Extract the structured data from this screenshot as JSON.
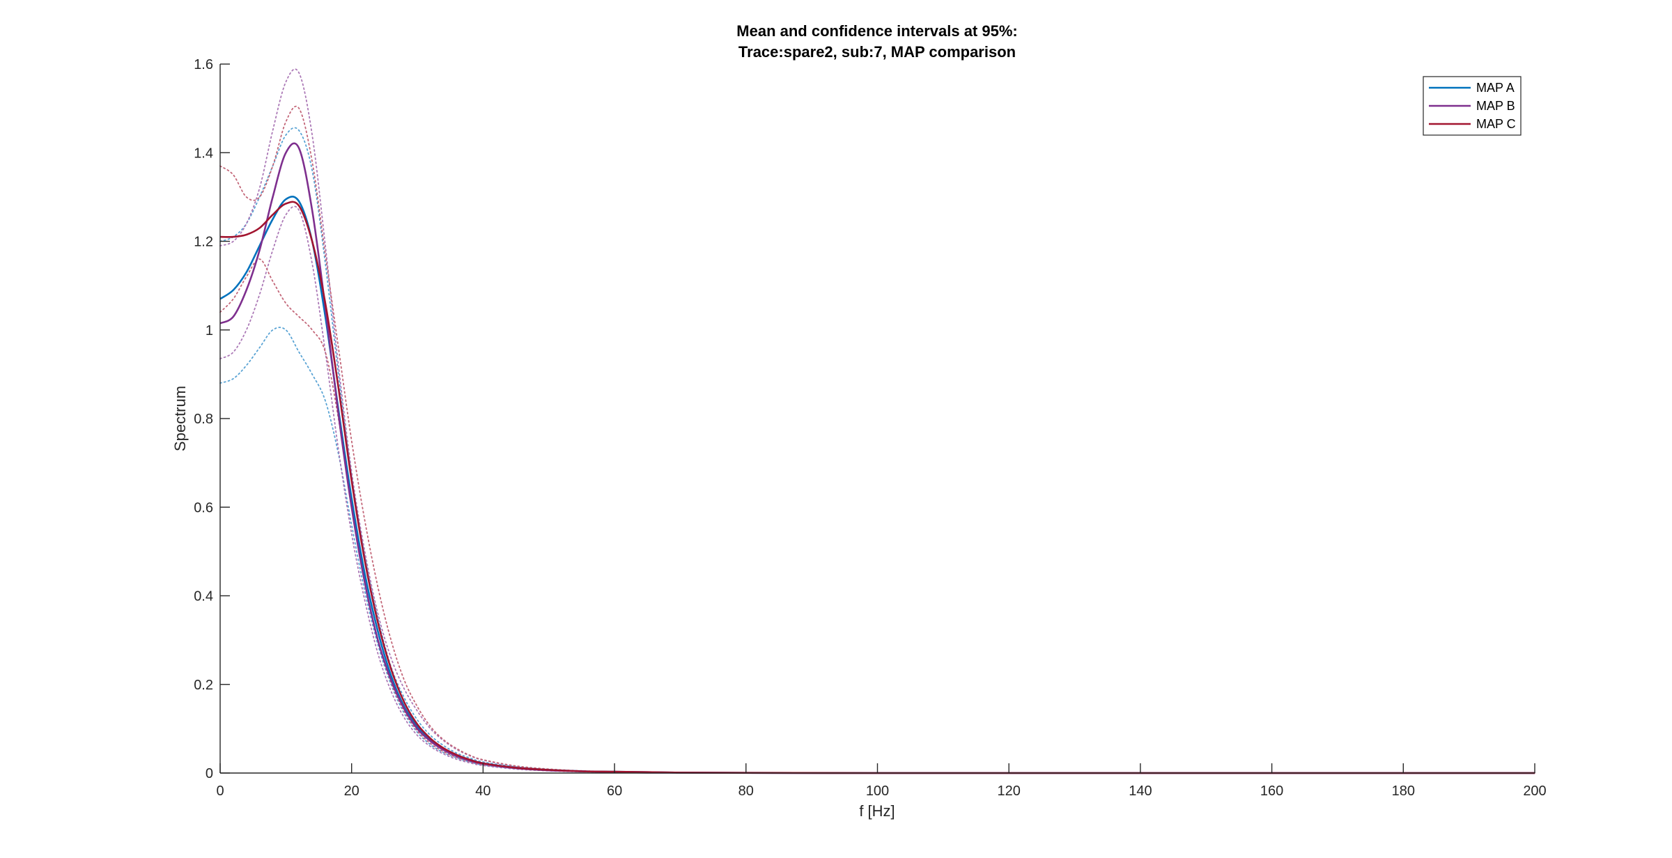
{
  "chart_data": {
    "type": "line",
    "title_line1": "Mean and confidence intervals at 95%:",
    "title_line2": "Trace:spare2, sub:7, MAP comparison",
    "xlabel": "f [Hz]",
    "ylabel": "Spectrum",
    "xlim": [
      0,
      200
    ],
    "ylim": [
      0,
      1.6
    ],
    "xticks": [
      "0",
      "20",
      "40",
      "60",
      "80",
      "100",
      "120",
      "140",
      "160",
      "180",
      "200"
    ],
    "yticks": [
      "0",
      "0.2",
      "0.4",
      "0.6",
      "0.8",
      "1",
      "1.2",
      "1.4",
      "1.6"
    ],
    "grid": false,
    "legend_position": "top-right",
    "x": [
      0,
      2,
      4,
      6,
      8,
      10,
      12,
      14,
      16,
      18,
      20,
      22,
      24,
      26,
      28,
      30,
      32,
      34,
      36,
      38,
      40,
      45,
      50,
      55,
      60,
      65,
      70,
      80,
      100,
      120,
      140,
      160,
      180,
      200
    ],
    "series": [
      {
        "name": "MAP A",
        "color": "#0072BD",
        "mean": [
          1.07,
          1.09,
          1.13,
          1.19,
          1.25,
          1.295,
          1.29,
          1.2,
          1.03,
          0.82,
          0.62,
          0.45,
          0.32,
          0.22,
          0.15,
          0.105,
          0.075,
          0.055,
          0.04,
          0.03,
          0.022,
          0.012,
          0.007,
          0.004,
          0.003,
          0.002,
          0.001,
          0.0005,
          0,
          0,
          0,
          0,
          0,
          0
        ],
        "upper": [
          1.2,
          1.21,
          1.24,
          1.3,
          1.37,
          1.44,
          1.45,
          1.36,
          1.15,
          0.9,
          0.67,
          0.49,
          0.35,
          0.24,
          0.17,
          0.12,
          0.085,
          0.062,
          0.045,
          0.034,
          0.025,
          0.014,
          0.008,
          0.005,
          0.003,
          0.002,
          0.001,
          0.0005,
          0,
          0,
          0,
          0,
          0,
          0
        ],
        "lower": [
          0.88,
          0.89,
          0.92,
          0.96,
          1.0,
          1.0,
          0.95,
          0.9,
          0.84,
          0.72,
          0.56,
          0.41,
          0.29,
          0.2,
          0.135,
          0.092,
          0.064,
          0.046,
          0.034,
          0.025,
          0.018,
          0.01,
          0.006,
          0.003,
          0.002,
          0.001,
          0.001,
          0.0003,
          0,
          0,
          0,
          0,
          0,
          0
        ]
      },
      {
        "name": "MAP B",
        "color": "#7E2F8E",
        "mean": [
          1.015,
          1.03,
          1.09,
          1.18,
          1.3,
          1.4,
          1.41,
          1.27,
          1.05,
          0.81,
          0.6,
          0.43,
          0.3,
          0.21,
          0.145,
          0.1,
          0.072,
          0.052,
          0.038,
          0.028,
          0.021,
          0.011,
          0.006,
          0.004,
          0.002,
          0.001,
          0.001,
          0.0003,
          0,
          0,
          0,
          0,
          0,
          0
        ],
        "upper": [
          1.19,
          1.2,
          1.24,
          1.32,
          1.45,
          1.56,
          1.58,
          1.44,
          1.19,
          0.92,
          0.68,
          0.5,
          0.36,
          0.26,
          0.19,
          0.14,
          0.1,
          0.073,
          0.053,
          0.039,
          0.029,
          0.015,
          0.008,
          0.005,
          0.003,
          0.002,
          0.001,
          0.0005,
          0,
          0,
          0,
          0,
          0,
          0
        ],
        "lower": [
          0.935,
          0.95,
          1.0,
          1.08,
          1.18,
          1.26,
          1.27,
          1.15,
          0.95,
          0.73,
          0.54,
          0.39,
          0.27,
          0.185,
          0.125,
          0.085,
          0.06,
          0.043,
          0.031,
          0.023,
          0.017,
          0.009,
          0.005,
          0.003,
          0.002,
          0.001,
          0.0005,
          0.0002,
          0,
          0,
          0,
          0,
          0,
          0
        ]
      },
      {
        "name": "MAP C",
        "color": "#A2142F",
        "mean": [
          1.21,
          1.21,
          1.215,
          1.23,
          1.26,
          1.285,
          1.28,
          1.2,
          1.06,
          0.87,
          0.66,
          0.48,
          0.34,
          0.235,
          0.16,
          0.11,
          0.078,
          0.056,
          0.041,
          0.03,
          0.022,
          0.012,
          0.007,
          0.004,
          0.003,
          0.002,
          0.001,
          0.0005,
          0,
          0,
          0,
          0,
          0,
          0
        ],
        "upper": [
          1.37,
          1.35,
          1.3,
          1.3,
          1.37,
          1.47,
          1.5,
          1.38,
          1.17,
          0.96,
          0.75,
          0.57,
          0.42,
          0.3,
          0.21,
          0.15,
          0.105,
          0.075,
          0.055,
          0.04,
          0.03,
          0.016,
          0.009,
          0.005,
          0.003,
          0.002,
          0.001,
          0.0005,
          0,
          0,
          0,
          0,
          0,
          0
        ],
        "lower": [
          1.04,
          1.07,
          1.12,
          1.16,
          1.11,
          1.06,
          1.03,
          1.0,
          0.95,
          0.8,
          0.6,
          0.43,
          0.3,
          0.205,
          0.14,
          0.095,
          0.067,
          0.048,
          0.035,
          0.026,
          0.019,
          0.011,
          0.006,
          0.004,
          0.002,
          0.001,
          0.0005,
          0.0003,
          0,
          0,
          0,
          0,
          0,
          0
        ]
      }
    ]
  }
}
